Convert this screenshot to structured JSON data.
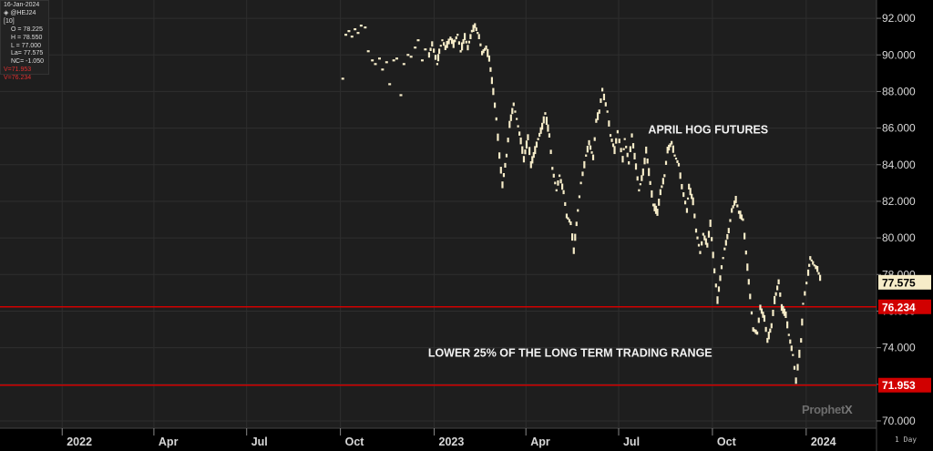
{
  "info": {
    "date": "16-Jan-2024",
    "symbol": "@HEJ24 [10]",
    "open": "O = 78.225",
    "high": "H = 78.550",
    "low": "L = 77.000",
    "last": "La= 77.575",
    "net_change": "NC= -1.050",
    "ref1": "V=71.953",
    "ref2": "V=76.234"
  },
  "watermark": {
    "main": "Prophet",
    "x": "X"
  },
  "interval_label": "1 Day",
  "colors": {
    "price": "#f6ecc8",
    "hline": "#d10000",
    "plot_bg": "#1e1e1e",
    "last_tag": "#f6ecc8"
  },
  "chart_data": {
    "type": "line",
    "title": "",
    "xlabel": "",
    "ylabel": "",
    "ylim": [
      69.6,
      93.0
    ],
    "grid": true,
    "y_ticks": [
      "70.000",
      "72.000",
      "74.000",
      "76.000",
      "78.000",
      "80.000",
      "82.000",
      "84.000",
      "86.000",
      "88.000",
      "90.000",
      "92.000"
    ],
    "x_ticks": [
      {
        "label": "2022",
        "date": "2022-01-01"
      },
      {
        "label": "Apr",
        "date": "2022-04-01"
      },
      {
        "label": "Jul",
        "date": "2022-07-01"
      },
      {
        "label": "Oct",
        "date": "2022-10-01"
      },
      {
        "label": "2023",
        "date": "2023-01-01"
      },
      {
        "label": "Apr",
        "date": "2023-04-01"
      },
      {
        "label": "Jul",
        "date": "2023-07-01"
      },
      {
        "label": "Oct",
        "date": "2023-10-01"
      },
      {
        "label": "2024",
        "date": "2024-01-01"
      }
    ],
    "x_range": [
      "2021-11-01",
      "2024-03-10"
    ],
    "annotations": [
      {
        "text": "APRIL HOG FUTURES",
        "date": "2023-07-30",
        "y": 85.7
      },
      {
        "text": "LOWER 25% OF THE LONG TERM TRADING RANGE",
        "date": "2022-12-26",
        "y": 73.5
      }
    ],
    "horizontal_lines": [
      {
        "value": 76.234,
        "label": "76.234"
      },
      {
        "value": 71.953,
        "label": "71.953"
      }
    ],
    "last_price": {
      "value": 77.575,
      "label": "77.575"
    },
    "series": [
      {
        "points": [
          [
            "2022-10-02",
            88.7
          ],
          [
            "2022-10-05",
            91.1
          ],
          [
            "2022-10-08",
            91.3
          ],
          [
            "2022-10-11",
            91.0
          ],
          [
            "2022-10-14",
            91.4
          ],
          [
            "2022-10-17",
            91.2
          ],
          [
            "2022-10-20",
            91.6
          ],
          [
            "2022-10-24",
            91.5
          ],
          [
            "2022-10-27",
            90.2
          ],
          [
            "2022-10-31",
            89.7
          ],
          [
            "2022-11-03",
            89.5
          ],
          [
            "2022-11-07",
            89.8
          ],
          [
            "2022-11-10",
            89.2
          ],
          [
            "2022-11-14",
            89.6
          ],
          [
            "2022-11-17",
            88.4
          ],
          [
            "2022-11-21",
            89.7
          ],
          [
            "2022-11-24",
            89.8
          ],
          [
            "2022-11-28",
            87.8
          ],
          [
            "2022-12-01",
            89.5
          ],
          [
            "2022-12-05",
            90.0
          ],
          [
            "2022-12-08",
            89.9
          ],
          [
            "2022-12-12",
            90.4
          ],
          [
            "2022-12-15",
            90.8
          ],
          [
            "2022-12-19",
            89.7
          ],
          [
            "2022-12-22",
            90.3
          ],
          [
            "2022-12-27",
            90.0
          ],
          [
            "2022-12-30",
            90.6
          ],
          [
            "2023-01-04",
            89.5
          ],
          [
            "2023-01-06",
            90.2
          ],
          [
            "2023-01-09",
            90.8
          ],
          [
            "2023-01-12",
            90.4
          ],
          [
            "2023-01-17",
            90.9
          ],
          [
            "2023-01-20",
            90.6
          ],
          [
            "2023-01-24",
            91.1
          ],
          [
            "2023-01-27",
            90.2
          ],
          [
            "2023-01-31",
            91.0
          ],
          [
            "2023-02-03",
            90.4
          ],
          [
            "2023-02-07",
            91.3
          ],
          [
            "2023-02-10",
            91.6
          ],
          [
            "2023-02-14",
            91.0
          ],
          [
            "2023-02-17",
            90.1
          ],
          [
            "2023-02-21",
            90.4
          ],
          [
            "2023-02-24",
            89.8
          ],
          [
            "2023-02-28",
            88.0
          ],
          [
            "2023-03-03",
            86.5
          ],
          [
            "2023-03-06",
            84.5
          ],
          [
            "2023-03-09",
            82.9
          ],
          [
            "2023-03-13",
            84.5
          ],
          [
            "2023-03-16",
            86.2
          ],
          [
            "2023-03-20",
            87.3
          ],
          [
            "2023-03-23",
            86.5
          ],
          [
            "2023-03-27",
            85.3
          ],
          [
            "2023-03-30",
            84.3
          ],
          [
            "2023-04-03",
            85.5
          ],
          [
            "2023-04-06",
            84.0
          ],
          [
            "2023-04-10",
            84.8
          ],
          [
            "2023-04-13",
            85.4
          ],
          [
            "2023-04-17",
            86.1
          ],
          [
            "2023-04-20",
            86.8
          ],
          [
            "2023-04-24",
            85.6
          ],
          [
            "2023-04-27",
            83.8
          ],
          [
            "2023-05-01",
            82.6
          ],
          [
            "2023-05-04",
            83.4
          ],
          [
            "2023-05-08",
            82.5
          ],
          [
            "2023-05-11",
            81.2
          ],
          [
            "2023-05-15",
            80.8
          ],
          [
            "2023-05-18",
            79.3
          ],
          [
            "2023-05-22",
            81.5
          ],
          [
            "2023-05-25",
            83.0
          ],
          [
            "2023-05-30",
            84.5
          ],
          [
            "2023-06-02",
            85.2
          ],
          [
            "2023-06-06",
            84.4
          ],
          [
            "2023-06-09",
            86.4
          ],
          [
            "2023-06-12",
            86.9
          ],
          [
            "2023-06-15",
            88.1
          ],
          [
            "2023-06-20",
            86.9
          ],
          [
            "2023-06-23",
            85.6
          ],
          [
            "2023-06-27",
            84.8
          ],
          [
            "2023-06-30",
            85.8
          ],
          [
            "2023-07-05",
            84.3
          ],
          [
            "2023-07-07",
            85.4
          ],
          [
            "2023-07-11",
            84.1
          ],
          [
            "2023-07-14",
            85.6
          ],
          [
            "2023-07-18",
            83.9
          ],
          [
            "2023-07-21",
            82.6
          ],
          [
            "2023-07-25",
            83.6
          ],
          [
            "2023-07-28",
            84.8
          ],
          [
            "2023-08-01",
            83.0
          ],
          [
            "2023-08-04",
            81.8
          ],
          [
            "2023-08-08",
            81.4
          ],
          [
            "2023-08-11",
            82.5
          ],
          [
            "2023-08-15",
            83.4
          ],
          [
            "2023-08-18",
            84.8
          ],
          [
            "2023-08-22",
            85.2
          ],
          [
            "2023-08-25",
            84.5
          ],
          [
            "2023-08-29",
            84.0
          ],
          [
            "2023-09-01",
            82.8
          ],
          [
            "2023-09-06",
            81.5
          ],
          [
            "2023-09-08",
            82.8
          ],
          [
            "2023-09-12",
            82.0
          ],
          [
            "2023-09-15",
            80.4
          ],
          [
            "2023-09-19",
            79.2
          ],
          [
            "2023-09-22",
            80.2
          ],
          [
            "2023-09-26",
            79.6
          ],
          [
            "2023-09-29",
            80.8
          ],
          [
            "2023-10-03",
            78.2
          ],
          [
            "2023-10-06",
            76.6
          ],
          [
            "2023-10-10",
            78.4
          ],
          [
            "2023-10-13",
            79.4
          ],
          [
            "2023-10-17",
            80.4
          ],
          [
            "2023-10-20",
            81.5
          ],
          [
            "2023-10-24",
            82.1
          ],
          [
            "2023-10-27",
            81.4
          ],
          [
            "2023-10-31",
            81.0
          ],
          [
            "2023-11-03",
            79.2
          ],
          [
            "2023-11-07",
            76.8
          ],
          [
            "2023-11-10",
            75.0
          ],
          [
            "2023-11-14",
            74.8
          ],
          [
            "2023-11-17",
            76.2
          ],
          [
            "2023-11-21",
            75.6
          ],
          [
            "2023-11-24",
            74.4
          ],
          [
            "2023-11-28",
            75.2
          ],
          [
            "2023-12-01",
            76.6
          ],
          [
            "2023-12-05",
            77.6
          ],
          [
            "2023-12-08",
            76.2
          ],
          [
            "2023-12-12",
            75.8
          ],
          [
            "2023-12-15",
            74.7
          ],
          [
            "2023-12-19",
            73.6
          ],
          [
            "2023-12-22",
            72.2
          ],
          [
            "2023-12-27",
            74.4
          ],
          [
            "2023-12-29",
            76.4
          ],
          [
            "2024-01-03",
            78.1
          ],
          [
            "2024-01-05",
            78.9
          ],
          [
            "2024-01-09",
            78.5
          ],
          [
            "2024-01-12",
            78.3
          ],
          [
            "2024-01-16",
            77.575
          ]
        ]
      }
    ]
  }
}
